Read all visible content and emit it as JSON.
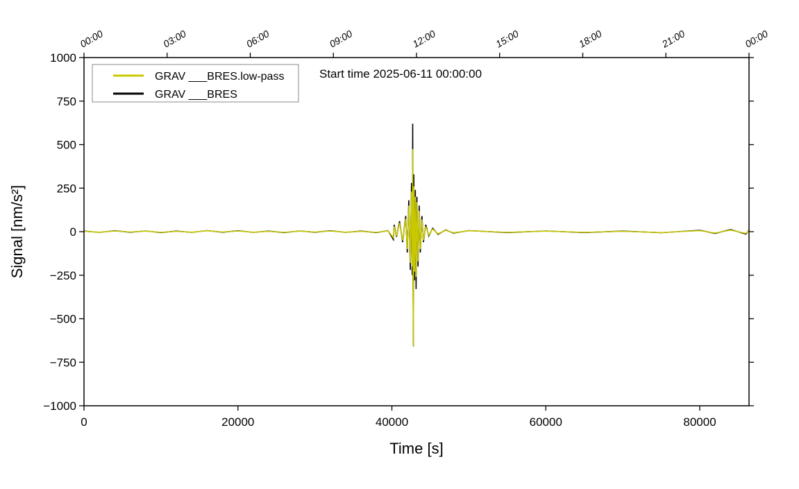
{
  "chart_data": {
    "type": "line",
    "annotation": "Start time 2025-06-11 00:00:00",
    "xlabel": "Time [s]",
    "ylabel": "Signal [nm/s²]",
    "x": [
      0,
      2000,
      4000,
      6000,
      8000,
      10000,
      12000,
      14000,
      16000,
      18000,
      20000,
      22000,
      24000,
      26000,
      28000,
      30000,
      32000,
      34000,
      36000,
      38000,
      39500,
      40200,
      40300,
      40600,
      41000,
      41400,
      41800,
      42000,
      42200,
      42400,
      42550,
      42650,
      42700,
      42750,
      42800,
      42850,
      42950,
      43050,
      43150,
      43250,
      43400,
      43550,
      43700,
      43900,
      44100,
      44400,
      44800,
      45300,
      46000,
      47000,
      48000,
      50000,
      55000,
      60000,
      65000,
      70000,
      75000,
      80000,
      82000,
      84000,
      86000,
      86400
    ],
    "series": [
      {
        "name": "GRAV ___BRES",
        "color": "#000000",
        "values": [
          3,
          -4,
          5,
          -3,
          4,
          -5,
          3,
          -4,
          6,
          -3,
          5,
          -4,
          3,
          -5,
          4,
          -3,
          5,
          -4,
          3,
          -5,
          6,
          -45,
          40,
          -30,
          60,
          -60,
          90,
          -120,
          180,
          -220,
          280,
          -250,
          620,
          -300,
          -660,
          330,
          -280,
          240,
          -330,
          200,
          -200,
          150,
          -120,
          90,
          -60,
          40,
          -25,
          20,
          -15,
          10,
          -8,
          6,
          -5,
          4,
          -5,
          3,
          -6,
          8,
          -10,
          12,
          -14,
          10
        ]
      },
      {
        "name": "GRAV ___BRES.low-pass",
        "color": "#c8c800",
        "values": [
          2,
          -3,
          4,
          -2,
          3,
          -4,
          2,
          -3,
          5,
          -2,
          4,
          -3,
          2,
          -4,
          3,
          -2,
          4,
          -3,
          2,
          -4,
          5,
          -35,
          30,
          -25,
          50,
          -50,
          75,
          -100,
          150,
          -180,
          230,
          -200,
          475,
          -240,
          -660,
          260,
          -230,
          200,
          -260,
          170,
          -170,
          120,
          -100,
          70,
          -50,
          30,
          -20,
          15,
          -12,
          8,
          -6,
          5,
          -4,
          3,
          -4,
          2,
          -5,
          6,
          -8,
          9,
          -10,
          8
        ]
      }
    ],
    "legend_order": [
      1,
      0
    ],
    "legend": "upper left",
    "xlim": [
      0,
      86400
    ],
    "xticks": [
      0,
      20000,
      40000,
      60000,
      80000
    ],
    "x2ticks": [
      {
        "value": 0,
        "label": "00:00"
      },
      {
        "value": 10800,
        "label": "03:00"
      },
      {
        "value": 21600,
        "label": "06:00"
      },
      {
        "value": 32400,
        "label": "09:00"
      },
      {
        "value": 43200,
        "label": "12:00"
      },
      {
        "value": 54000,
        "label": "15:00"
      },
      {
        "value": 64800,
        "label": "18:00"
      },
      {
        "value": 75600,
        "label": "21:00"
      },
      {
        "value": 86400,
        "label": "00:00"
      }
    ],
    "ylim": [
      -1000,
      1000
    ],
    "yticks": [
      {
        "value": -1000,
        "label": "−1000"
      },
      {
        "value": -750,
        "label": "−750"
      },
      {
        "value": -500,
        "label": "−500"
      },
      {
        "value": -250,
        "label": "−250"
      },
      0,
      250,
      500,
      750,
      1000
    ]
  }
}
